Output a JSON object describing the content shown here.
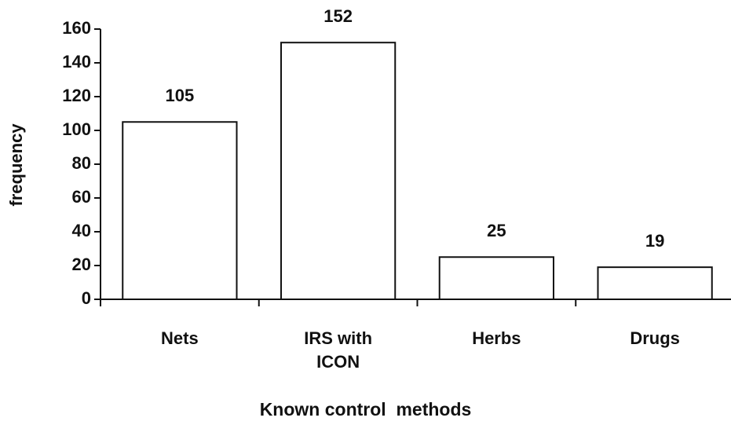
{
  "chart_data": {
    "type": "bar",
    "categories": [
      "Nets",
      "IRS with ICON",
      "Herbs",
      "Drugs"
    ],
    "values": [
      105,
      152,
      25,
      19
    ],
    "color": "#ffffff",
    "ylim": [
      0,
      160
    ],
    "yticks": [
      0,
      20,
      40,
      60,
      80,
      100,
      120,
      140,
      160
    ],
    "y_label": "frequency",
    "x_label": "Known control  methods",
    "grid": false
  }
}
